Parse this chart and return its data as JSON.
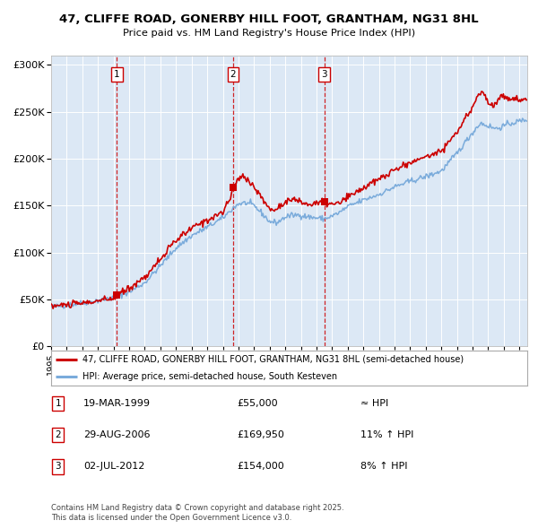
{
  "title_line1": "47, CLIFFE ROAD, GONERBY HILL FOOT, GRANTHAM, NG31 8HL",
  "title_line2": "Price paid vs. HM Land Registry's House Price Index (HPI)",
  "bg_color": "#dce8f5",
  "red_line_color": "#cc0000",
  "blue_line_color": "#7aabdb",
  "grid_color": "#ffffff",
  "sale_points": [
    {
      "date_num": 1999.22,
      "price": 55000,
      "label": "1"
    },
    {
      "date_num": 2006.66,
      "price": 169950,
      "label": "2"
    },
    {
      "date_num": 2012.5,
      "price": 154000,
      "label": "3"
    }
  ],
  "vline_dates": [
    1999.22,
    2006.66,
    2012.5
  ],
  "vline_labels": [
    "1",
    "2",
    "3"
  ],
  "legend_line1": "47, CLIFFE ROAD, GONERBY HILL FOOT, GRANTHAM, NG31 8HL (semi-detached house)",
  "legend_line2": "HPI: Average price, semi-detached house, South Kesteven",
  "table_rows": [
    {
      "label": "1",
      "date": "19-MAR-1999",
      "price": "£55,000",
      "hpi": "≈ HPI"
    },
    {
      "label": "2",
      "date": "29-AUG-2006",
      "price": "£169,950",
      "hpi": "11% ↑ HPI"
    },
    {
      "label": "3",
      "date": "02-JUL-2012",
      "price": "£154,000",
      "hpi": "8% ↑ HPI"
    }
  ],
  "footer": "Contains HM Land Registry data © Crown copyright and database right 2025.\nThis data is licensed under the Open Government Licence v3.0.",
  "ylim": [
    0,
    310000
  ],
  "xlim_start": 1995.0,
  "xlim_end": 2025.5
}
